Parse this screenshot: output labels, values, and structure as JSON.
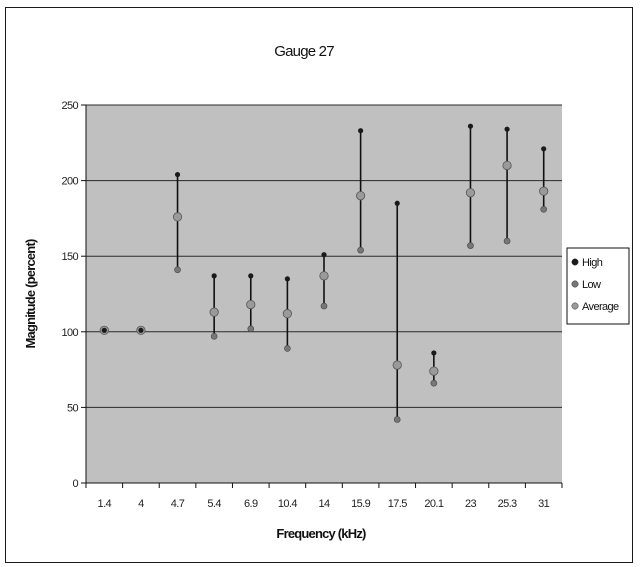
{
  "chart_data": {
    "type": "scatter",
    "title": "Gauge 27",
    "xlabel": "Frequency (kHz)",
    "ylabel": "Magnitude (percent)",
    "categories": [
      "1.4",
      "4",
      "4.7",
      "5.4",
      "6.9",
      "10.4",
      "14",
      "15.9",
      "17.5",
      "20.1",
      "23",
      "25.3",
      "31"
    ],
    "ylim": [
      0,
      250
    ],
    "yticks": [
      "0",
      "50",
      "100",
      "150",
      "200",
      "250"
    ],
    "grid": true,
    "legend_position": "right",
    "series": [
      {
        "name": "High",
        "color": "#1a1a1a",
        "values": [
          101,
          101,
          204,
          137,
          137,
          135,
          151,
          233,
          185,
          86,
          236,
          234,
          221
        ]
      },
      {
        "name": "Low",
        "color": "#777777",
        "values": [
          101,
          101,
          141,
          97,
          102,
          89,
          117,
          154,
          42,
          66,
          157,
          160,
          181
        ]
      },
      {
        "name": "Average",
        "color": "#9a9a9a",
        "values": [
          101,
          101,
          176,
          113,
          118,
          112,
          137,
          190,
          78,
          74,
          192,
          210,
          193
        ]
      }
    ],
    "plot_background": "#c0c0c0"
  }
}
